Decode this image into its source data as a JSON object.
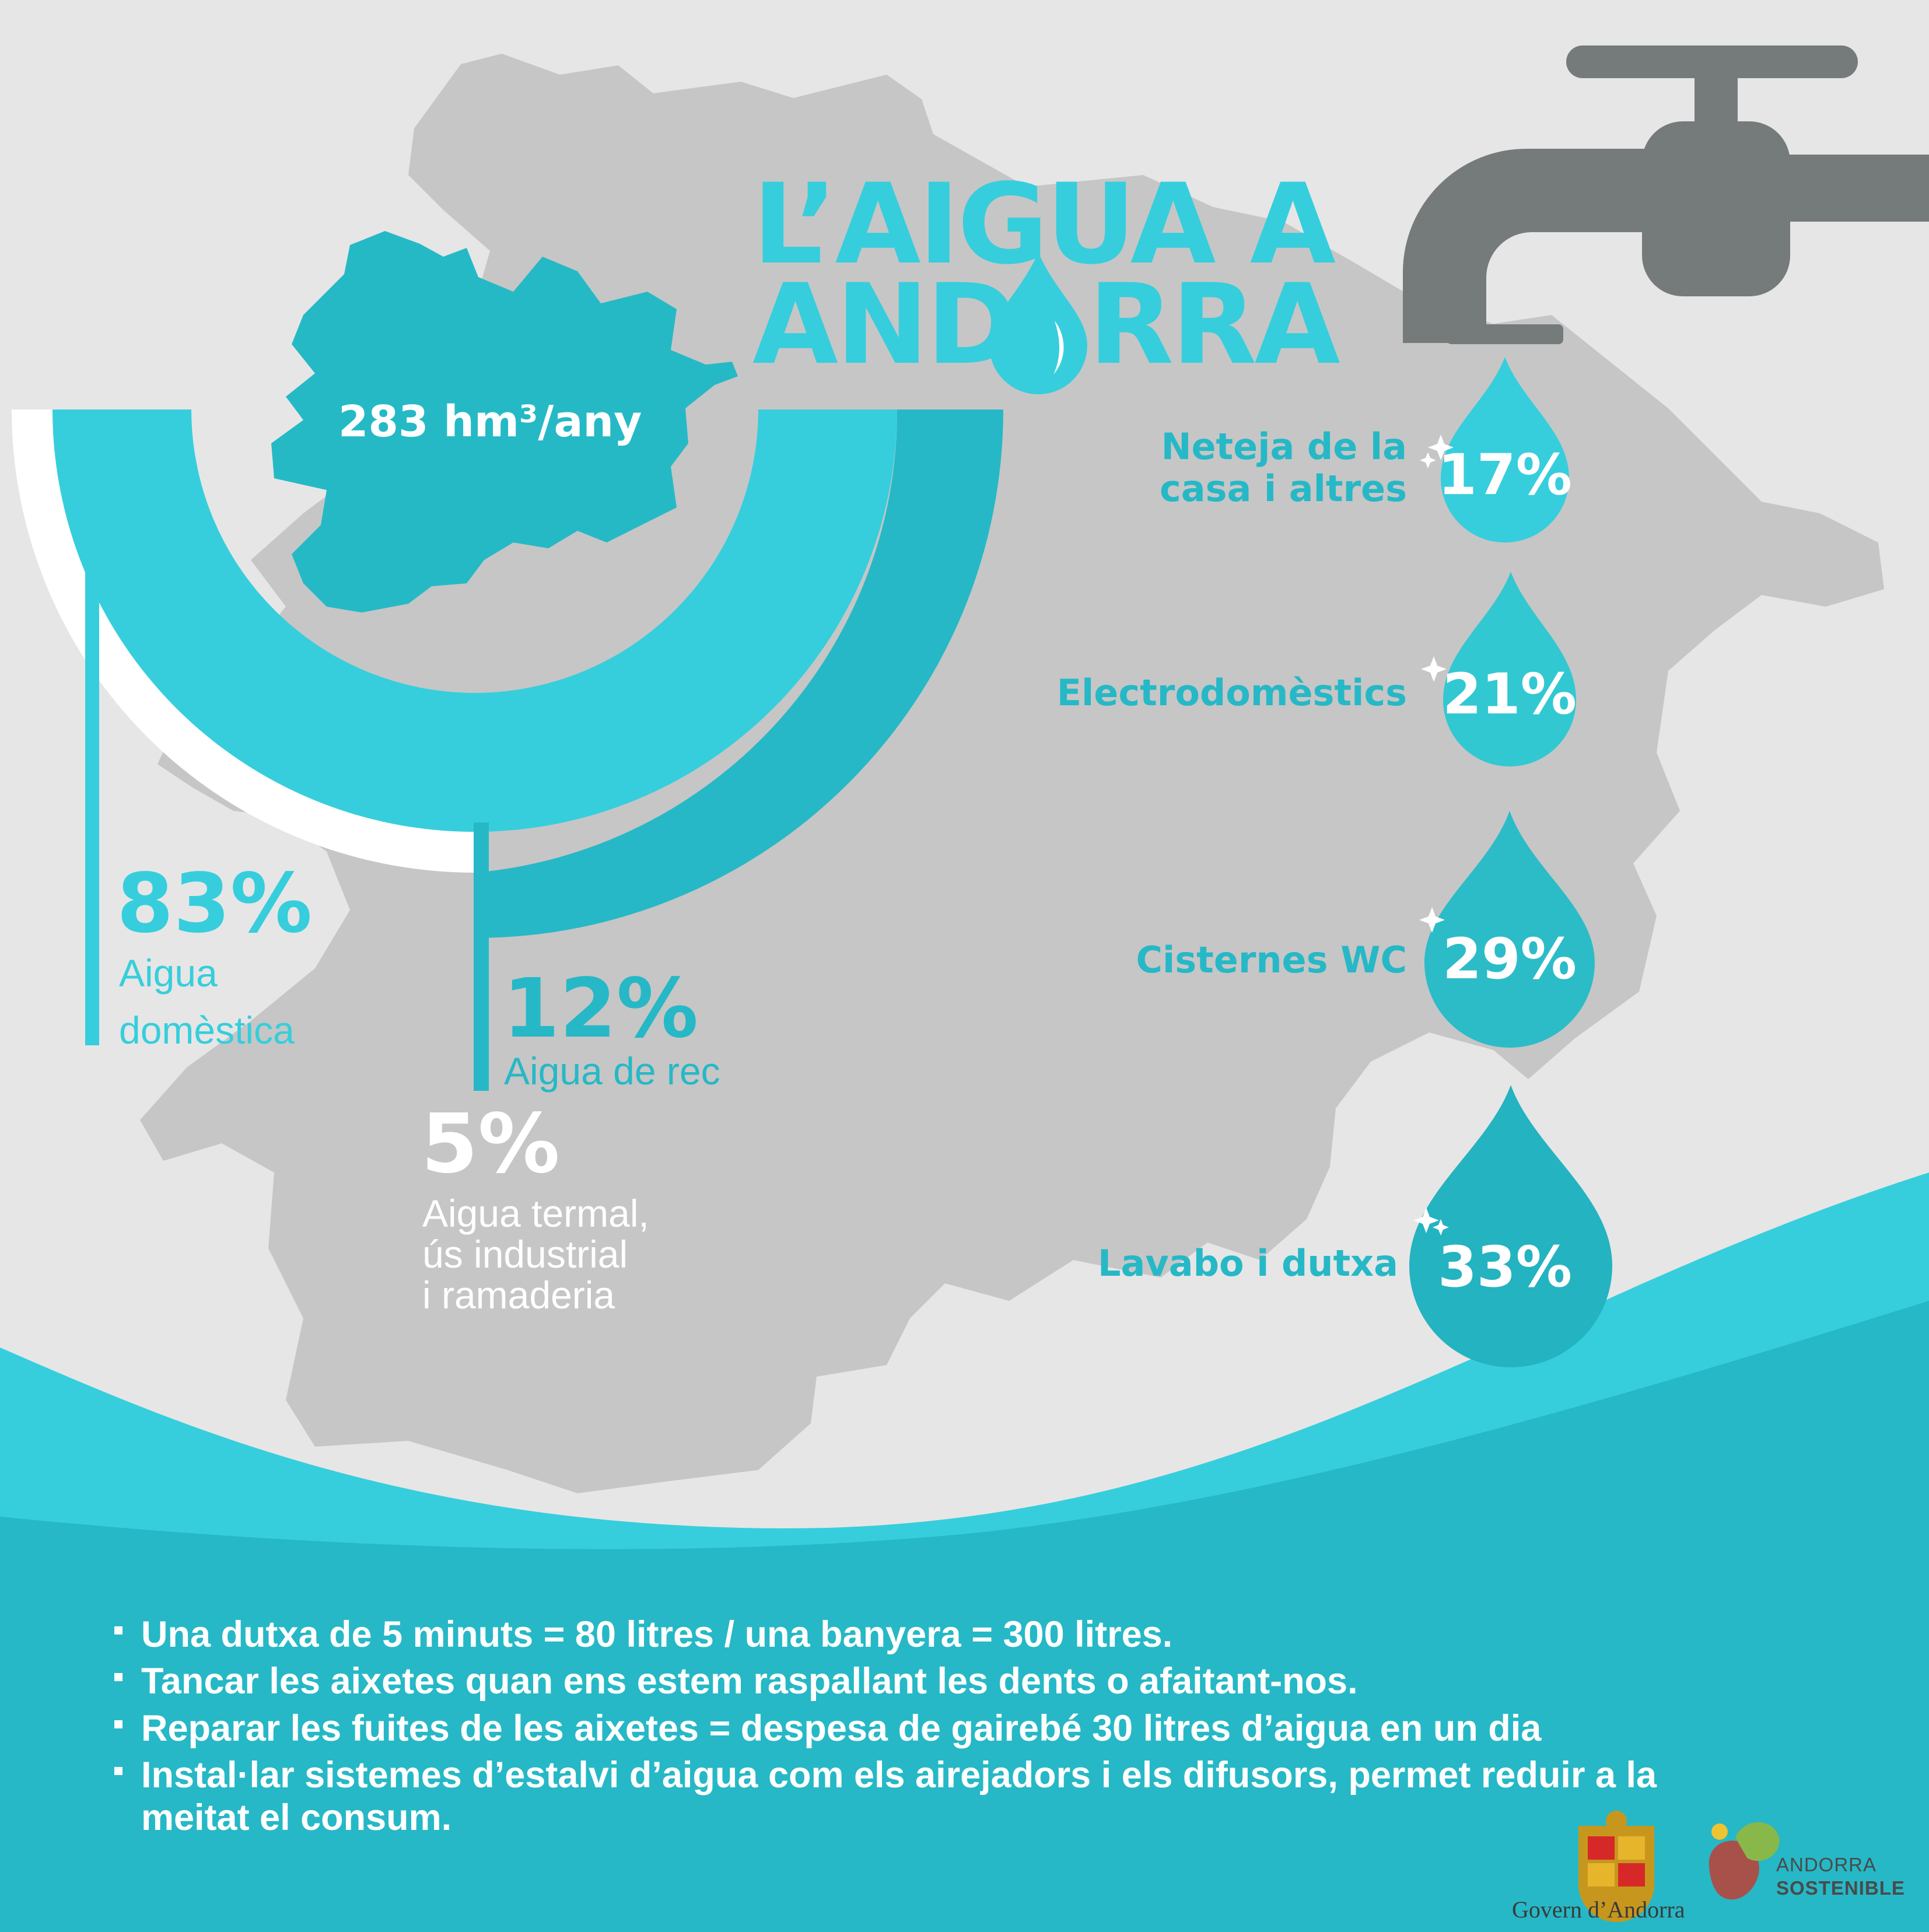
{
  "title": {
    "line1": "L’AIGUA A",
    "line2_a": "AND",
    "line2_b": "RRA"
  },
  "total": {
    "text": "283 hm³/any"
  },
  "usage": [
    {
      "pct": "83%",
      "label_line1": "Aigua",
      "label_line2": "domèstica",
      "color": "#36cedc"
    },
    {
      "pct": "12%",
      "label_line1": "Aigua de rec",
      "color": "#26b8c6"
    },
    {
      "pct": "5%",
      "label_line1": "Aigua termal,",
      "label_line2": "ús industrial",
      "label_line3": "i ramaderia",
      "color": "#ffffff"
    }
  ],
  "domestic": [
    {
      "label_line1": "Neteja de la",
      "label_line2": "casa i altres",
      "pct": "17%"
    },
    {
      "label_line1": "Electrodomèstics",
      "pct": "21%"
    },
    {
      "label_line1": "Cisternes WC",
      "pct": "29%"
    },
    {
      "label_line1": "Lavabo i dutxa",
      "pct": "33%"
    }
  ],
  "tips": [
    "Una dutxa de 5 minuts = 80 litres / una banyera = 300 litres.",
    "Tancar les aixetes quan ens estem raspallant les dents o afaitant-nos.",
    "Reparar les fuites de les aixetes = despesa de gairebé 30 litres d’aigua en un dia",
    "Instal·lar sistemes d’estalvi d’aigua com els airejadors i els difusors, permet reduir a la meitat el consum."
  ],
  "logos": {
    "govern": "Govern d’Andorra",
    "sost_line1": "ANDORRA",
    "sost_line2": "SOSTENIBLE"
  },
  "colors": {
    "background": "#e6e6e6",
    "map": "#c6c6c6",
    "cyan": "#36cedc",
    "teal": "#26b8c6",
    "faucet": "#757b7b"
  }
}
